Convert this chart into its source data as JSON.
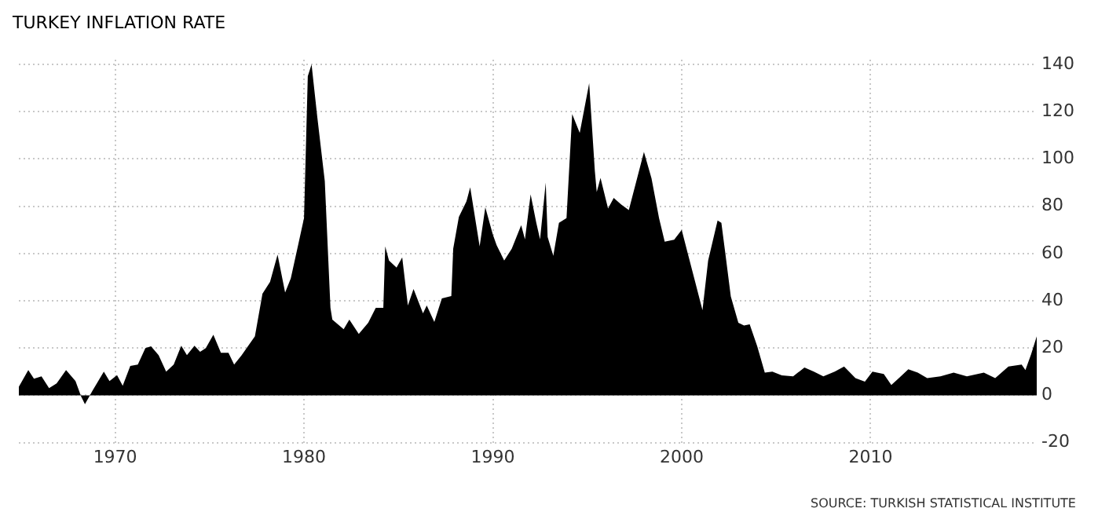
{
  "chart_data": {
    "type": "area",
    "title": "TURKEY INFLATION RATE",
    "annotations": [
      "SOURCE: TURKISH STATISTICAL INSTITUTE"
    ],
    "x": [
      1964.9,
      1965.4,
      1965.7,
      1966.1,
      1966.5,
      1966.9,
      1967.4,
      1967.9,
      1968.2,
      1968.4,
      1968.8,
      1969.4,
      1969.7,
      1970.1,
      1970.4,
      1970.8,
      1971.2,
      1971.6,
      1971.9,
      1972.3,
      1972.7,
      1973.1,
      1973.5,
      1973.8,
      1974.2,
      1974.5,
      1974.8,
      1975.2,
      1975.6,
      1976.0,
      1976.3,
      1976.7,
      1977.4,
      1977.8,
      1978.2,
      1978.6,
      1979.0,
      1979.3,
      1979.7,
      1980.0,
      1980.2,
      1980.4,
      1980.7,
      1981.1,
      1981.4,
      1981.5,
      1982.1,
      1982.4,
      1982.9,
      1983.4,
      1983.8,
      1984.2,
      1984.3,
      1984.5,
      1984.9,
      1985.2,
      1985.5,
      1985.8,
      1986.3,
      1986.5,
      1986.9,
      1987.3,
      1987.8,
      1987.9,
      1988.2,
      1988.6,
      1988.8,
      1989.3,
      1989.6,
      1990.0,
      1990.2,
      1990.6,
      1991.0,
      1991.5,
      1991.7,
      1992.0,
      1992.3,
      1992.5,
      1992.8,
      1992.9,
      1993.2,
      1993.5,
      1993.9,
      1994.2,
      1994.6,
      1995.1,
      1995.4,
      1995.5,
      1995.7,
      1996.1,
      1996.4,
      1996.8,
      1997.2,
      1997.6,
      1998.0,
      1998.4,
      1998.8,
      1999.1,
      1999.6,
      2000.0,
      2000.3,
      2000.7,
      2001.1,
      2001.4,
      2001.9,
      2002.1,
      2002.3,
      2002.6,
      2003.0,
      2003.3,
      2003.6,
      2004.0,
      2004.4,
      2004.8,
      2005.3,
      2005.9,
      2006.5,
      2007.0,
      2007.5,
      2008.1,
      2008.6,
      2009.2,
      2009.7,
      2010.1,
      2010.7,
      2011.1,
      2011.5,
      2012.0,
      2012.5,
      2013.0,
      2013.7,
      2014.4,
      2015.1,
      2016.0,
      2016.6,
      2017.3,
      2018.0,
      2018.2,
      2018.5,
      2018.8
    ],
    "series": [
      {
        "color": "#000000",
        "values": [
          3.6,
          10.7,
          7,
          8,
          3,
          5,
          10.7,
          6,
          -0.5,
          -3.8,
          2,
          10,
          6,
          8.5,
          4,
          12.4,
          13,
          20,
          20.7,
          17,
          10,
          13,
          21,
          17,
          21,
          18.4,
          20,
          25.6,
          18,
          18,
          13,
          17,
          25,
          43,
          48,
          59.5,
          43.5,
          49.5,
          64,
          75,
          135,
          140,
          118,
          90.7,
          37,
          32,
          28,
          32,
          26,
          30.7,
          37,
          37,
          63,
          57,
          54,
          58.4,
          38,
          45,
          34.7,
          38,
          31,
          41,
          42,
          62,
          75.5,
          82,
          88,
          63,
          79.5,
          68,
          63.5,
          57,
          62,
          72,
          66,
          85,
          73,
          66,
          90,
          67,
          59,
          73,
          75,
          119,
          111,
          132,
          95,
          86,
          92,
          79,
          83.5,
          80.7,
          78.4,
          90.7,
          103,
          91.8,
          75,
          65,
          65.8,
          70,
          60.7,
          48.4,
          36,
          57,
          74,
          73,
          60.7,
          41.8,
          30.7,
          29.5,
          30,
          20.7,
          9.6,
          10,
          8.4,
          8,
          11.8,
          10,
          8,
          10,
          12.2,
          7.3,
          5.8,
          10,
          9,
          4.4,
          7.3,
          11,
          9.6,
          7.3,
          8,
          9.6,
          8,
          9.6,
          7.3,
          12.2,
          13,
          10.7,
          17.3,
          25
        ]
      }
    ],
    "xlim": [
      1964.9,
      2018.8
    ],
    "xticks": [
      1970,
      1980,
      1990,
      2000,
      2010
    ],
    "ylim": [
      -20,
      142
    ],
    "yticks": [
      -20,
      0,
      20,
      40,
      60,
      80,
      100,
      120,
      140
    ],
    "grid": true,
    "legend": false,
    "marker": "none"
  }
}
